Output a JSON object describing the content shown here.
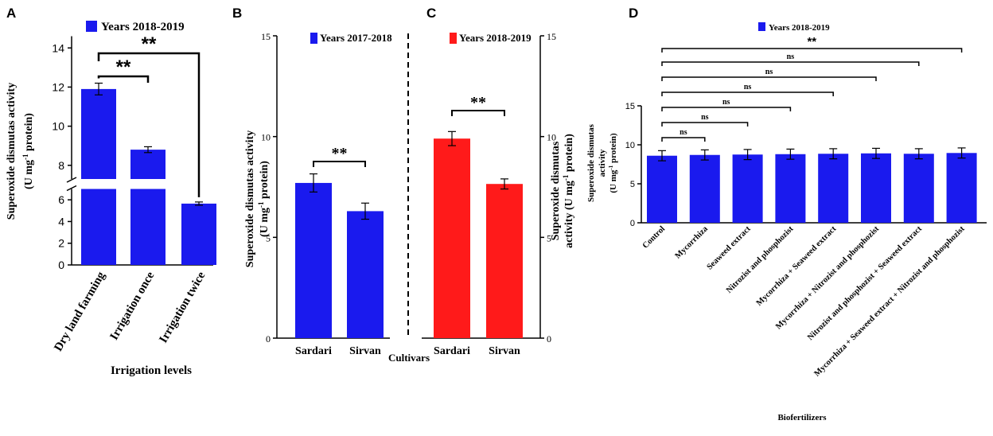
{
  "colors": {
    "blue": "#1a1aee",
    "red": "#ff1a1a",
    "axis": "#000000"
  },
  "chart_data": [
    {
      "panel": "A",
      "type": "bar",
      "legend": "Years 2018-2019",
      "categories": [
        "Dry land farming",
        "Irrigation once",
        "Irrigation twice"
      ],
      "values": [
        11.9,
        8.8,
        5.65
      ],
      "errors": [
        0.3,
        0.15,
        0.15
      ],
      "ylabel_line1": "Superoxide dismutas activity",
      "ylabel_line2_pre": "(U mg",
      "ylabel_line2_sup": "-1",
      "ylabel_line2_post": " protein)",
      "xlabel": "Irrigation levels",
      "lower_ticks": [
        "0",
        "2",
        "4",
        "6"
      ],
      "upper_ticks": [
        "8",
        "10",
        "12",
        "14"
      ],
      "ylim_lower": [
        0,
        7
      ],
      "ylim_upper": [
        7.3,
        14.6
      ],
      "significance": [
        "**",
        "**"
      ]
    },
    {
      "panel": "B",
      "type": "bar",
      "legend": "Years 2017-2018",
      "categories": [
        "Sardari",
        "Sirvan"
      ],
      "values": [
        7.7,
        6.3
      ],
      "errors": [
        0.45,
        0.4
      ],
      "ylim": [
        0,
        15
      ],
      "ticks": [
        "0",
        "5",
        "10",
        "15"
      ],
      "ylabel_line1": "Superoxide dismutas activity",
      "ylabel_line2_pre": "(U mg",
      "ylabel_line2_sup": "-1",
      "ylabel_line2_post": " protein)",
      "significance": "**"
    },
    {
      "panel": "C",
      "type": "bar",
      "legend": "Years 2018-2019",
      "categories": [
        "Sardari",
        "Sirvan"
      ],
      "values": [
        9.9,
        7.65
      ],
      "errors": [
        0.35,
        0.25
      ],
      "ylim": [
        0,
        15
      ],
      "ticks": [
        "0",
        "5",
        "10",
        "15"
      ],
      "ylabel_line1": "Superoxide dismutas",
      "ylabel_line2": "activity",
      "ylabel_line3_pre": "(U mg",
      "ylabel_line3_sup": "-1",
      "ylabel_line3_post": " protein)",
      "significance": "**"
    },
    {
      "panel": "D",
      "type": "bar",
      "legend": "Years 2018-2019",
      "categories": [
        "Control",
        "Mycorrhiza",
        "Seaweed extract",
        "Nitrozist and phosphozist",
        "Mycorrhiza + Seaweed extract",
        "Mycorrhiza + Nitrozist and phosphozist",
        "Nitrozist and phosphozist + Seaweed extract",
        "Mycorrhiza + Seaweed extract + Nitrozist and phosphozist"
      ],
      "values": [
        8.6,
        8.7,
        8.75,
        8.8,
        8.85,
        8.9,
        8.85,
        8.95
      ],
      "errors": [
        0.65,
        0.65,
        0.65,
        0.65,
        0.65,
        0.65,
        0.65,
        0.65
      ],
      "ylim": [
        0,
        15
      ],
      "ticks": [
        "0",
        "5",
        "10",
        "15"
      ],
      "ylabel_line1": "Superoxide dismutas",
      "ylabel_line2": "activity",
      "ylabel_line3_pre": "(U mg",
      "ylabel_line3_sup": "-1",
      "ylabel_line3_post": " protein)",
      "xlabel": "Biofertilizers",
      "significance": [
        "ns",
        "ns",
        "ns",
        "ns",
        "ns",
        "ns",
        "**"
      ]
    }
  ],
  "cultivars_label": "Cultivars"
}
